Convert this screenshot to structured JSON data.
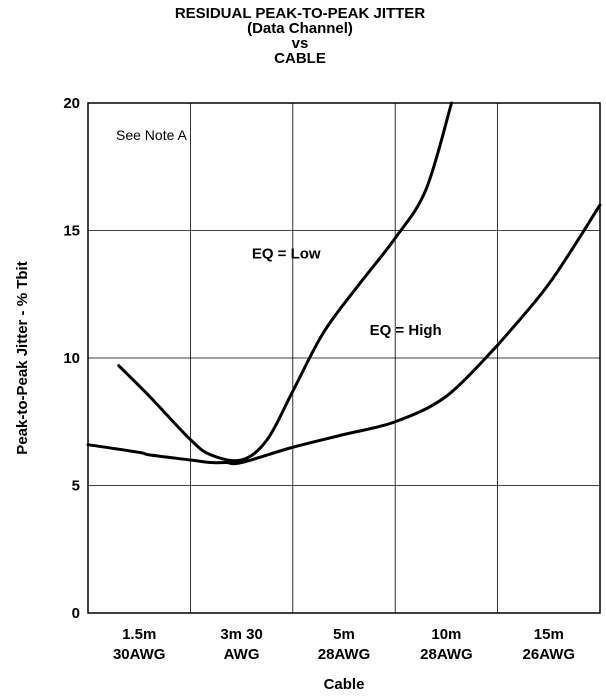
{
  "chart_data": {
    "type": "line",
    "title_lines": [
      "RESIDUAL PEAK-TO-PEAK JITTER",
      "(Data Channel)",
      "vs",
      "CABLE"
    ],
    "xlabel": "Cable",
    "ylabel": "Peak-to-Peak Jitter - % Tbit",
    "categories": [
      [
        "1.5m",
        "30AWG"
      ],
      [
        "3m 30",
        "AWG"
      ],
      [
        "5m",
        "28AWG"
      ],
      [
        "10m",
        "28AWG"
      ],
      [
        "15m",
        "26AWG"
      ]
    ],
    "ylim": [
      0,
      20
    ],
    "yticks": [
      0,
      5,
      10,
      15,
      20
    ],
    "grid": true,
    "note": "See Note A",
    "series": [
      {
        "name": "EQ = Low",
        "x": [
          0.3,
          0.6,
          1.0,
          1.2,
          1.5,
          1.75,
          2.0,
          2.3,
          2.65,
          3.0,
          3.3,
          3.55
        ],
        "y": [
          9.7,
          8.5,
          6.8,
          6.2,
          6.0,
          6.8,
          8.7,
          11.0,
          12.9,
          14.7,
          16.6,
          20.0
        ]
      },
      {
        "name": "EQ = High",
        "x": [
          0.0,
          0.5,
          0.6,
          1.0,
          1.2,
          1.35,
          1.5,
          2.0,
          2.5,
          3.0,
          3.5,
          4.0
        ],
        "y": [
          6.6,
          6.3,
          6.2,
          6.0,
          5.9,
          5.9,
          5.9,
          6.5,
          7.0,
          7.5,
          8.5,
          10.5
        ]
      },
      {
        "name": "EQ = High",
        "x": [
          4.0,
          4.5,
          5.0
        ],
        "y": [
          10.5,
          12.9,
          16.0
        ]
      }
    ]
  }
}
